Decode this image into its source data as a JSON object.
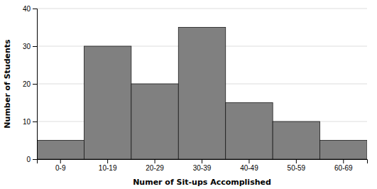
{
  "chart_data": {
    "type": "bar",
    "categories": [
      "0-9",
      "10-19",
      "20-29",
      "30-39",
      "40-49",
      "50-59",
      "60-69"
    ],
    "values": [
      5,
      30,
      20,
      35,
      15,
      10,
      5
    ],
    "color": "#808080",
    "xlabel": "Numer of Sit-ups Accomplished",
    "ylabel": "Number of Students",
    "ylim": [
      0,
      40
    ],
    "yticks": [
      0,
      10,
      20,
      30,
      40
    ],
    "grid": true
  }
}
